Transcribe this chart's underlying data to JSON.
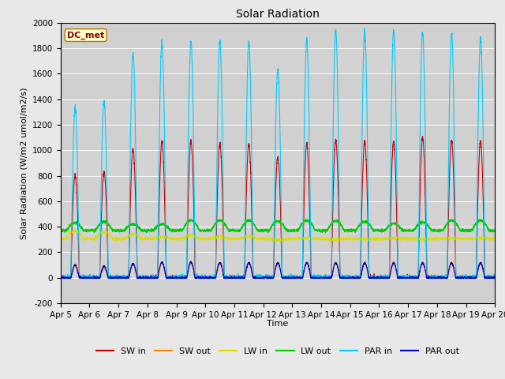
{
  "title": "Solar Radiation",
  "ylabel": "Solar Radiation (W/m2 umol/m2/s)",
  "xlabel": "Time",
  "annotation": "DC_met",
  "ylim": [
    -200,
    2000
  ],
  "fig_facecolor": "#e8e8e8",
  "ax_facecolor": "#d3d3d3",
  "series": {
    "SW_in": {
      "color": "#cc0000",
      "label": "SW in"
    },
    "SW_out": {
      "color": "#ff8800",
      "label": "SW out"
    },
    "LW_in": {
      "color": "#dddd00",
      "label": "LW in"
    },
    "LW_out": {
      "color": "#00cc00",
      "label": "LW out"
    },
    "PAR_in": {
      "color": "#00ccff",
      "label": "PAR in"
    },
    "PAR_out": {
      "color": "#0000bb",
      "label": "PAR out"
    }
  },
  "xtick_labels": [
    "Apr 5",
    "Apr 6",
    "Apr 7",
    "Apr 8",
    "Apr 9",
    "Apr 10",
    "Apr 11",
    "Apr 12",
    "Apr 13",
    "Apr 14",
    "Apr 15",
    "Apr 16",
    "Apr 17",
    "Apr 18",
    "Apr 19",
    "Apr 20"
  ],
  "ytick_labels": [
    -200,
    0,
    200,
    400,
    600,
    800,
    1000,
    1200,
    1400,
    1600,
    1800,
    2000
  ],
  "n_days": 15,
  "pts_per_day": 288,
  "day_peaks": {
    "SW_in": [
      800,
      830,
      1010,
      1070,
      1075,
      1050,
      1050,
      950,
      1050,
      1075,
      1070,
      1070,
      1100,
      1075,
      1070
    ],
    "SW_out": [
      90,
      75,
      105,
      120,
      125,
      120,
      120,
      120,
      120,
      120,
      120,
      120,
      120,
      120,
      120
    ],
    "LW_in": [
      370,
      360,
      340,
      320,
      330,
      320,
      325,
      295,
      310,
      300,
      305,
      310,
      305,
      310,
      310
    ],
    "LW_out": [
      430,
      440,
      420,
      420,
      450,
      450,
      450,
      445,
      450,
      445,
      440,
      425,
      435,
      450,
      450
    ],
    "PAR_in": [
      1330,
      1390,
      1760,
      1860,
      1860,
      1850,
      1850,
      1640,
      1860,
      1940,
      1930,
      1930,
      1920,
      1920,
      1880
    ],
    "PAR_out": [
      100,
      90,
      110,
      120,
      120,
      115,
      115,
      115,
      115,
      115,
      115,
      115,
      115,
      115,
      115
    ]
  },
  "night_val": {
    "SW_in": 0,
    "SW_out": 0,
    "LW_in": 305,
    "LW_out": 370,
    "PAR_in": 0,
    "PAR_out": 0
  },
  "linewidth": 0.8,
  "grid_color": "#ffffff",
  "grid_alpha": 0.9,
  "title_fontsize": 10,
  "label_fontsize": 8,
  "tick_fontsize": 7.5,
  "legend_fontsize": 8
}
